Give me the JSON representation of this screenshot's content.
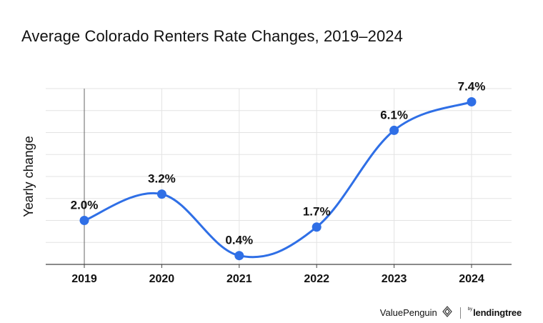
{
  "title": "Average Colorado Renters Rate Changes, 2019–2024",
  "footer": {
    "brand_primary": "ValuePenguin",
    "brand_by": "by",
    "brand_secondary": "lendingtree"
  },
  "chart_data": {
    "type": "line",
    "title": "Average Colorado Renters Rate Changes, 2019–2024",
    "xlabel": "",
    "ylabel": "Yearly change",
    "categories": [
      "2019",
      "2020",
      "2021",
      "2022",
      "2023",
      "2024"
    ],
    "series": [
      {
        "values": [
          2.0,
          3.2,
          0.4,
          1.7,
          6.1,
          7.4
        ],
        "labels": [
          "2.0%",
          "3.2%",
          "0.4%",
          "1.7%",
          "6.1%",
          "7.4%"
        ],
        "color": "#2f6fe6"
      }
    ],
    "ylim": [
      0.0,
      8.0
    ],
    "grid": true,
    "legend": "none"
  }
}
